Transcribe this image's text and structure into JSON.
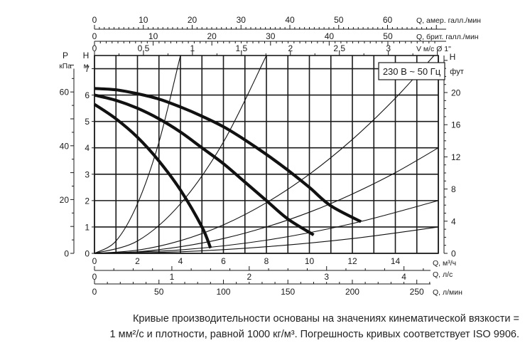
{
  "chart_data": {
    "type": "line",
    "title": "",
    "voltage_label": "230 В ~ 50 Гц",
    "x_unit": "Q, м³/ч",
    "x_range": [
      0,
      16
    ],
    "x_ticks": [
      0,
      2,
      4,
      6,
      8,
      10,
      12,
      14
    ],
    "y_left_m_label": "H",
    "y_left_m_unit": "м",
    "y_left_m_range": [
      0,
      7.5
    ],
    "y_left_m_ticks": [
      0,
      1,
      2,
      3,
      4,
      5,
      6,
      7
    ],
    "y_left_kpa_label": "P",
    "y_left_kpa_unit": "кПа",
    "y_left_kpa_ticks": [
      0,
      20,
      40,
      60
    ],
    "y_right_ft_label": "H",
    "y_right_ft_unit": "фут",
    "y_right_ft_ticks": [
      0,
      4,
      8,
      12,
      16,
      20
    ],
    "top_axes": [
      {
        "label": "Q, амер. галл./мин",
        "ticks": [
          0,
          10,
          20,
          30,
          40,
          50,
          60
        ],
        "max_value": 70.4
      },
      {
        "label": "Q, брит. галл./мин",
        "ticks": [
          0,
          10,
          20,
          30,
          40,
          50
        ],
        "max_value": 58.6
      },
      {
        "label": "V м/с Ø 1\"",
        "ticks": [
          0,
          0.5,
          1,
          1.5,
          2,
          2.5,
          3
        ],
        "tick_labels": [
          "0",
          "0,5",
          "1",
          "1,5",
          "2",
          "2,5",
          "3"
        ],
        "max_value": 3.51
      }
    ],
    "bottom_axes": [
      {
        "label": "Q, л/с",
        "ticks": [
          0,
          1,
          2,
          3,
          4
        ],
        "max_value": 4.444
      },
      {
        "label": "Q, л/мин",
        "ticks": [
          0,
          50,
          100,
          150,
          200,
          250
        ],
        "max_value": 266.7
      }
    ],
    "series": [
      {
        "style": "pump-curve",
        "x": [
          0,
          1,
          2,
          3,
          4,
          5,
          5.4
        ],
        "y": [
          5.65,
          5.1,
          4.4,
          3.5,
          2.4,
          1.0,
          0.2
        ]
      },
      {
        "style": "pump-curve",
        "x": [
          0,
          1,
          2,
          3,
          4,
          5,
          6,
          7,
          8,
          9,
          10.2
        ],
        "y": [
          6.0,
          5.8,
          5.5,
          5.1,
          4.6,
          4.0,
          3.4,
          2.7,
          2.0,
          1.3,
          0.7
        ]
      },
      {
        "style": "pump-curve",
        "x": [
          0,
          1,
          2,
          3,
          4,
          5,
          6,
          7,
          8,
          9,
          10,
          11,
          12.4
        ],
        "y": [
          6.25,
          6.2,
          6.05,
          5.85,
          5.55,
          5.2,
          4.8,
          4.3,
          3.75,
          3.15,
          2.5,
          1.8,
          1.2
        ]
      },
      {
        "style": "system-curve",
        "x": [
          0,
          1,
          2,
          3,
          4
        ],
        "y": [
          0,
          0.47,
          1.88,
          4.22,
          7.5
        ]
      },
      {
        "style": "system-curve",
        "x": [
          0,
          2,
          4,
          6,
          8
        ],
        "y": [
          0,
          0.47,
          1.88,
          4.22,
          7.5
        ]
      },
      {
        "style": "system-curve",
        "x": [
          0,
          2,
          4,
          6,
          8,
          10,
          12,
          14,
          15.8
        ],
        "y": [
          0,
          0.12,
          0.48,
          1.08,
          1.92,
          3.0,
          4.32,
          5.88,
          7.5
        ]
      },
      {
        "style": "system-curve",
        "x": [
          0,
          2,
          4,
          6,
          8,
          10,
          12,
          14,
          16
        ],
        "y": [
          0,
          0.06,
          0.25,
          0.56,
          1.0,
          1.56,
          2.25,
          3.06,
          4.0
        ]
      },
      {
        "style": "system-curve",
        "x": [
          0,
          4,
          8,
          12,
          16
        ],
        "y": [
          0,
          0.13,
          0.5,
          1.13,
          2.0
        ]
      },
      {
        "style": "system-curve",
        "x": [
          0,
          4,
          8,
          12,
          16
        ],
        "y": [
          0,
          0.06,
          0.25,
          0.56,
          1.0
        ]
      }
    ]
  },
  "footnote": {
    "line1": "Кривые производительности основаны на значениях кинематической вязкости =",
    "line2": "1 мм²/с и плотности, равной 1000 кг/м³. Погрешность кривых соответствует ISO 9906."
  }
}
